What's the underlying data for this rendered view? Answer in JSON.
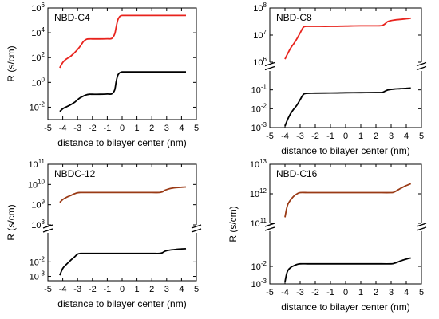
{
  "chart_data": [
    {
      "type": "line",
      "title": "NBD-C4",
      "xlabel": "distance to bilayer center (nm)",
      "ylabel": "R (s/cm)",
      "xlim": [
        -5,
        5
      ],
      "xticks": [
        "-5",
        "-4",
        "-3",
        "-2",
        "-1",
        "0",
        "1",
        "2",
        "3",
        "4",
        "5"
      ],
      "yscale": "log",
      "broken_y_axis": false,
      "ylim": [
        0.001,
        1000000
      ],
      "yticks": [
        {
          "value": 0.01,
          "base": "10",
          "exp": "-2"
        },
        {
          "value": 1,
          "base": "10",
          "exp": "0"
        },
        {
          "value": 100,
          "base": "10",
          "exp": "2"
        },
        {
          "value": 10000,
          "base": "10",
          "exp": "4"
        },
        {
          "value": 1000000,
          "base": "10",
          "exp": "6"
        }
      ],
      "series": [
        {
          "color": "#e8231d",
          "x": [
            -4.2,
            -4.0,
            -3.8,
            -3.5,
            -3.2,
            -3.0,
            -2.8,
            -2.6,
            -2.4,
            -2.2,
            -2.0,
            -1.5,
            -1.0,
            -0.7,
            -0.5,
            -0.4,
            -0.3,
            -0.2,
            -0.1,
            0.0,
            0.2,
            0.5,
            1.0,
            2.0,
            3.0,
            4.0,
            4.3
          ],
          "y": [
            15,
            40,
            70,
            120,
            250,
            450,
            900,
            2000,
            3000,
            3200,
            3200,
            3200,
            3300,
            3500,
            8000,
            30000,
            100000,
            180000,
            230000,
            250000,
            250000,
            250000,
            250000,
            250000,
            250000,
            250000,
            250000
          ]
        },
        {
          "color": "#000000",
          "x": [
            -4.2,
            -4.0,
            -3.8,
            -3.5,
            -3.2,
            -3.0,
            -2.8,
            -2.6,
            -2.4,
            -2.2,
            -2.0,
            -1.5,
            -1.0,
            -0.7,
            -0.5,
            -0.4,
            -0.3,
            -0.2,
            -0.1,
            0.0,
            0.2,
            0.5,
            1.0,
            2.0,
            3.0,
            4.0,
            4.3
          ],
          "y": [
            0.0045,
            0.0075,
            0.01,
            0.015,
            0.025,
            0.04,
            0.06,
            0.08,
            0.1,
            0.11,
            0.11,
            0.11,
            0.115,
            0.12,
            0.25,
            1.2,
            3.5,
            5.5,
            6.5,
            7,
            7,
            7,
            7,
            7,
            7,
            7,
            7
          ]
        }
      ]
    },
    {
      "type": "line",
      "title": "NBD-C8",
      "xlabel": "distance to bilayer center (nm)",
      "ylabel": "",
      "xlim": [
        -5,
        5
      ],
      "xticks": [
        "-5",
        "-4",
        "-3",
        "-2",
        "-1",
        "0",
        "1",
        "2",
        "3",
        "4",
        "5"
      ],
      "yscale": "log",
      "broken_y_axis": true,
      "upper_ylim": [
        1000000,
        100000000
      ],
      "lower_ylim": [
        0.001,
        1
      ],
      "upper_yticks": [
        {
          "value": 1000000,
          "base": "10",
          "exp": "6"
        },
        {
          "value": 10000000,
          "base": "10",
          "exp": "7"
        },
        {
          "value": 100000000,
          "base": "10",
          "exp": "8"
        }
      ],
      "lower_yticks": [
        {
          "value": 0.001,
          "base": "10",
          "exp": "-3"
        },
        {
          "value": 0.01,
          "base": "10",
          "exp": "-2"
        },
        {
          "value": 0.1,
          "base": "10",
          "exp": "-1"
        }
      ],
      "series": [
        {
          "color": "#e8231d",
          "segment": "upper",
          "x": [
            -4.0,
            -3.8,
            -3.6,
            -3.4,
            -3.2,
            -3.0,
            -2.8,
            -2.6,
            -2.0,
            -1.0,
            0.0,
            1.0,
            2.0,
            2.4,
            2.6,
            2.8,
            3.2,
            3.6,
            4.0,
            4.3
          ],
          "y": [
            1300000,
            2200000,
            3500000,
            5000000,
            7500000,
            12000000,
            19000000,
            21000000,
            21000000,
            21000000,
            21500000,
            22000000,
            22000000,
            22500000,
            26000000,
            32000000,
            36000000,
            38000000,
            40000000,
            42000000
          ]
        },
        {
          "color": "#000000",
          "segment": "lower",
          "x": [
            -4.0,
            -3.8,
            -3.6,
            -3.4,
            -3.2,
            -3.0,
            -2.8,
            -2.6,
            -2.0,
            -1.0,
            0.0,
            1.0,
            2.0,
            2.4,
            2.6,
            2.8,
            3.2,
            3.6,
            4.0,
            4.3
          ],
          "y": [
            0.0012,
            0.003,
            0.006,
            0.01,
            0.016,
            0.03,
            0.055,
            0.065,
            0.067,
            0.068,
            0.07,
            0.071,
            0.072,
            0.073,
            0.085,
            0.1,
            0.11,
            0.115,
            0.12,
            0.125
          ]
        }
      ]
    },
    {
      "type": "line",
      "title": "NBDC-12",
      "xlabel": "distance to bilayer center (nm)",
      "ylabel": "R (s/cm)",
      "xlim": [
        -5,
        5
      ],
      "xticks": [
        "-5",
        "-4",
        "-3",
        "-2",
        "-1",
        "0",
        "1",
        "2",
        "3",
        "4",
        "5"
      ],
      "yscale": "log",
      "broken_y_axis": true,
      "upper_ylim": [
        100000000,
        100000000000
      ],
      "lower_ylim": [
        0.0005,
        1
      ],
      "upper_yticks": [
        {
          "value": 100000000,
          "base": "10",
          "exp": "8"
        },
        {
          "value": 1000000000,
          "base": "10",
          "exp": "9"
        },
        {
          "value": 10000000000,
          "base": "10",
          "exp": "10"
        },
        {
          "value": 100000000000,
          "base": "10",
          "exp": "11"
        }
      ],
      "lower_yticks": [
        {
          "value": 0.001,
          "base": "10",
          "exp": "-3"
        },
        {
          "value": 0.01,
          "base": "10",
          "exp": "-2"
        }
      ],
      "series": [
        {
          "color": "#9a3a15",
          "segment": "upper",
          "x": [
            -4.2,
            -4.0,
            -3.8,
            -3.6,
            -3.4,
            -3.2,
            -3.0,
            -2.8,
            -2.5,
            -2.0,
            -1.0,
            0.0,
            1.0,
            2.0,
            2.5,
            2.7,
            2.9,
            3.2,
            3.6,
            4.0,
            4.3
          ],
          "y": [
            1300000000,
            1800000000,
            2200000000,
            2600000000,
            3000000000,
            3500000000,
            3900000000,
            4000000000,
            4000000000,
            4000000000,
            4000000000,
            4000000000,
            4000000000,
            4000000000,
            4000000000,
            4300000000,
            5200000000,
            6200000000,
            6900000000,
            7300000000,
            7500000000
          ]
        },
        {
          "color": "#000000",
          "segment": "lower",
          "x": [
            -4.2,
            -4.0,
            -3.8,
            -3.6,
            -3.4,
            -3.2,
            -3.0,
            -2.8,
            -2.5,
            -2.0,
            -1.0,
            0.0,
            1.0,
            2.0,
            2.5,
            2.7,
            2.9,
            3.2,
            3.6,
            4.0,
            4.3
          ],
          "y": [
            0.0012,
            0.0035,
            0.006,
            0.0095,
            0.015,
            0.022,
            0.034,
            0.038,
            0.038,
            0.038,
            0.038,
            0.038,
            0.038,
            0.038,
            0.038,
            0.042,
            0.055,
            0.065,
            0.072,
            0.078,
            0.08
          ]
        }
      ]
    },
    {
      "type": "line",
      "title": "NBD-C16",
      "xlabel": "distance to bilayer center (nm)",
      "ylabel": "R (s/cm)",
      "xlim": [
        -5,
        5
      ],
      "xticks": [
        "-5",
        "-4",
        "-3",
        "-2",
        "-1",
        "0",
        "1",
        "2",
        "3",
        "4",
        "5"
      ],
      "yscale": "log",
      "broken_y_axis": true,
      "upper_ylim": [
        100000000000,
        10000000000000
      ],
      "lower_ylim": [
        0.001,
        1
      ],
      "upper_yticks": [
        {
          "value": 100000000000,
          "base": "10",
          "exp": "11"
        },
        {
          "value": 1000000000000,
          "base": "10",
          "exp": "12"
        },
        {
          "value": 10000000000000,
          "base": "10",
          "exp": "13"
        }
      ],
      "lower_yticks": [
        {
          "value": 0.001,
          "base": "10",
          "exp": "-3"
        },
        {
          "value": 0.01,
          "base": "10",
          "exp": "-2"
        }
      ],
      "series": [
        {
          "color": "#9a3a15",
          "segment": "upper",
          "x": [
            -4.0,
            -3.9,
            -3.8,
            -3.6,
            -3.4,
            -3.2,
            -3.0,
            -2.5,
            -2.0,
            -1.0,
            0.0,
            1.0,
            2.0,
            3.0,
            3.2,
            3.4,
            3.6,
            3.8,
            4.0,
            4.3
          ],
          "y": [
            160000000000,
            300000000000,
            450000000000,
            650000000000,
            850000000000,
            1000000000000,
            1100000000000,
            1100000000000,
            1100000000000,
            1100000000000,
            1100000000000,
            1100000000000,
            1100000000000,
            1100000000000,
            1150000000000,
            1300000000000,
            1500000000000,
            1700000000000,
            1900000000000,
            2200000000000
          ]
        },
        {
          "color": "#000000",
          "segment": "lower",
          "x": [
            -4.0,
            -3.9,
            -3.8,
            -3.6,
            -3.4,
            -3.2,
            -3.0,
            -2.5,
            -2.0,
            -1.0,
            0.0,
            1.0,
            2.0,
            3.0,
            3.2,
            3.4,
            3.6,
            3.8,
            4.0,
            4.3
          ],
          "y": [
            0.0013,
            0.0035,
            0.006,
            0.009,
            0.011,
            0.013,
            0.014,
            0.014,
            0.014,
            0.014,
            0.014,
            0.014,
            0.014,
            0.014,
            0.015,
            0.017,
            0.02,
            0.023,
            0.026,
            0.03
          ]
        }
      ]
    }
  ]
}
